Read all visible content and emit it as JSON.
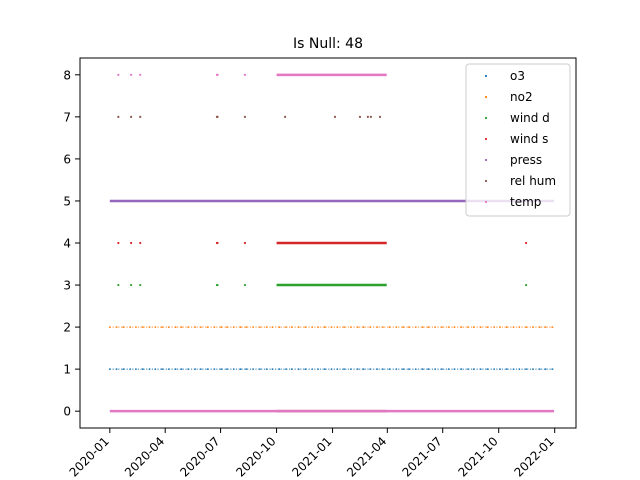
{
  "chart_data": {
    "type": "scatter",
    "title": "Is Null: 48",
    "xlabel": "",
    "ylabel": "",
    "x_axis": {
      "type": "date",
      "range": [
        "2019-11-13",
        "2022-02-05"
      ],
      "ticks": [
        "2020-01",
        "2020-04",
        "2020-07",
        "2020-10",
        "2021-01",
        "2021-04",
        "2021-07",
        "2021-10",
        "2022-01"
      ]
    },
    "y_axis": {
      "range": [
        -0.4,
        8.4
      ],
      "ticks": [
        "0",
        "1",
        "2",
        "3",
        "4",
        "5",
        "6",
        "7",
        "8"
      ]
    },
    "grid": false,
    "legend": {
      "position": "top-right",
      "entries": [
        "o3",
        "no2",
        "wind d",
        "wind s",
        "press",
        "rel hum",
        "temp"
      ]
    },
    "colors": [
      "#1f77b4",
      "#ff7f0e",
      "#2ca02c",
      "#d62728",
      "#9467bd",
      "#8c564b",
      "#e377c2"
    ],
    "series": [
      {
        "name": "o3",
        "color": "#1f77b4",
        "points": [],
        "segments": [
          {
            "y": 1,
            "x_start": "2020-01-01",
            "x_end": "2021-12-31",
            "style": "dense-dots"
          }
        ]
      },
      {
        "name": "no2",
        "color": "#ff7f0e",
        "points": [],
        "segments": [
          {
            "y": 2,
            "x_start": "2020-01-01",
            "x_end": "2021-12-31",
            "style": "dense-dots"
          }
        ]
      },
      {
        "name": "wind d",
        "color": "#2ca02c",
        "points": [
          {
            "x": "2020-01-15",
            "y": 3
          },
          {
            "x": "2020-02-05",
            "y": 3
          },
          {
            "x": "2020-02-20",
            "y": 3
          },
          {
            "x": "2020-06-25",
            "y": 3
          },
          {
            "x": "2020-06-26",
            "y": 3
          },
          {
            "x": "2020-08-10",
            "y": 3
          },
          {
            "x": "2021-11-15",
            "y": 3
          }
        ],
        "segments": [
          {
            "y": 3,
            "x_start": "2020-10-01",
            "x_end": "2021-03-31",
            "style": "solid"
          }
        ]
      },
      {
        "name": "wind s",
        "color": "#d62728",
        "points": [
          {
            "x": "2020-01-15",
            "y": 4
          },
          {
            "x": "2020-02-05",
            "y": 4
          },
          {
            "x": "2020-02-20",
            "y": 4
          },
          {
            "x": "2020-06-25",
            "y": 4
          },
          {
            "x": "2020-06-26",
            "y": 4
          },
          {
            "x": "2020-08-10",
            "y": 4
          },
          {
            "x": "2021-11-15",
            "y": 4
          }
        ],
        "segments": [
          {
            "y": 4,
            "x_start": "2020-10-01",
            "x_end": "2021-03-31",
            "style": "solid"
          }
        ]
      },
      {
        "name": "press",
        "color": "#9467bd",
        "points": [],
        "segments": [
          {
            "y": 5,
            "x_start": "2020-01-01",
            "x_end": "2021-12-31",
            "style": "solid"
          }
        ]
      },
      {
        "name": "rel hum",
        "color": "#8c564b",
        "points": [
          {
            "x": "2020-01-15",
            "y": 7
          },
          {
            "x": "2020-02-05",
            "y": 7
          },
          {
            "x": "2020-02-20",
            "y": 7
          },
          {
            "x": "2020-06-25",
            "y": 7
          },
          {
            "x": "2020-06-26",
            "y": 7
          },
          {
            "x": "2020-08-10",
            "y": 7
          },
          {
            "x": "2020-10-15",
            "y": 7
          },
          {
            "x": "2021-01-05",
            "y": 7
          },
          {
            "x": "2021-02-15",
            "y": 7
          },
          {
            "x": "2021-02-28",
            "y": 7
          },
          {
            "x": "2021-03-05",
            "y": 7
          },
          {
            "x": "2021-03-20",
            "y": 7
          }
        ],
        "segments": [
          {
            "y": 0,
            "x_start": "2020-10-01",
            "x_end": "2021-03-31",
            "style": "solid"
          }
        ]
      },
      {
        "name": "temp",
        "color": "#e377c2",
        "points": [
          {
            "x": "2020-01-15",
            "y": 8
          },
          {
            "x": "2020-02-05",
            "y": 8
          },
          {
            "x": "2020-02-20",
            "y": 8
          },
          {
            "x": "2020-06-25",
            "y": 8
          },
          {
            "x": "2020-06-26",
            "y": 8
          },
          {
            "x": "2020-08-10",
            "y": 8
          }
        ],
        "segments": [
          {
            "y": 0,
            "x_start": "2020-01-01",
            "x_end": "2021-12-31",
            "style": "solid"
          },
          {
            "y": 8,
            "x_start": "2020-10-01",
            "x_end": "2021-03-31",
            "style": "solid"
          }
        ]
      }
    ]
  }
}
